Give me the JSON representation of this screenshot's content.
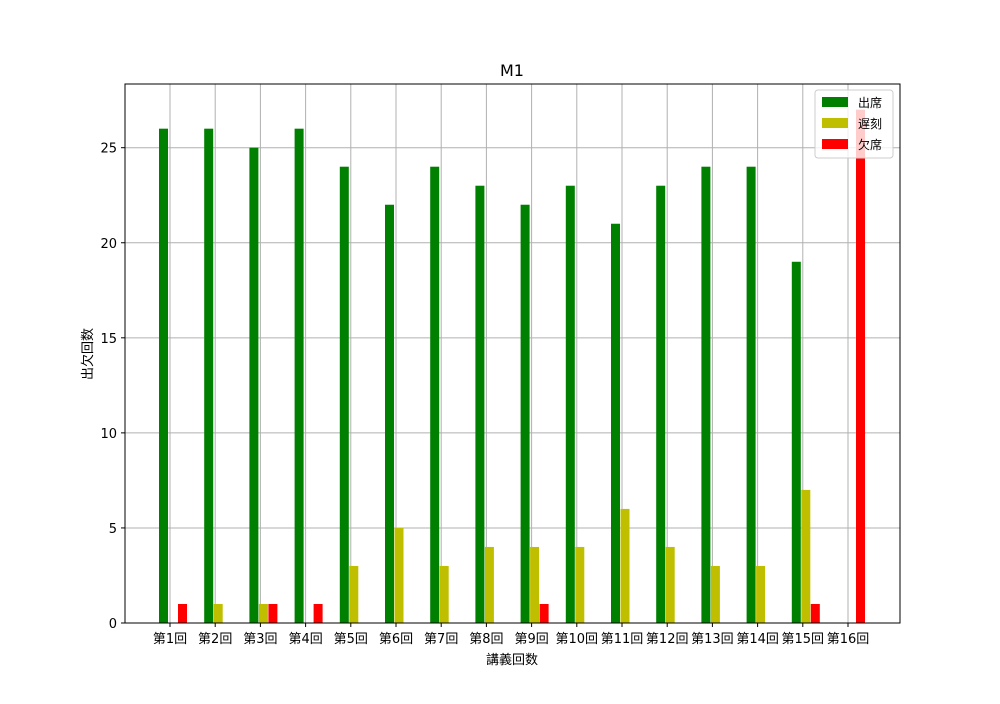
{
  "chart_data": {
    "type": "bar",
    "title": "M1",
    "xlabel": "講義回数",
    "ylabel": "出欠回数",
    "categories": [
      "第1回",
      "第2回",
      "第3回",
      "第4回",
      "第5回",
      "第6回",
      "第7回",
      "第8回",
      "第9回",
      "第10回",
      "第11回",
      "第12回",
      "第13回",
      "第14回",
      "第15回",
      "第16回"
    ],
    "series": [
      {
        "name": "出席",
        "color": "#008000",
        "values": [
          26,
          26,
          25,
          26,
          24,
          22,
          24,
          23,
          22,
          23,
          21,
          23,
          24,
          24,
          19,
          0
        ]
      },
      {
        "name": "遅刻",
        "color": "#bfbf00",
        "values": [
          0,
          1,
          1,
          0,
          3,
          5,
          3,
          4,
          4,
          4,
          6,
          4,
          3,
          3,
          7,
          0
        ]
      },
      {
        "name": "欠席",
        "color": "#ff0000",
        "values": [
          1,
          0,
          1,
          1,
          0,
          0,
          0,
          0,
          1,
          0,
          0,
          0,
          0,
          0,
          1,
          27
        ]
      }
    ],
    "ylim": [
      0,
      28.35
    ],
    "yticks": [
      0,
      5,
      10,
      15,
      20,
      25
    ],
    "grid": true,
    "legend_position": "top-right"
  }
}
